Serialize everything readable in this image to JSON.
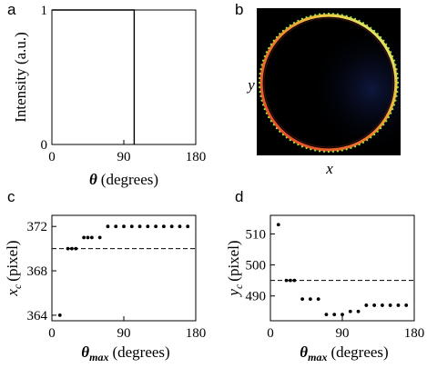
{
  "panel_labels": [
    "a",
    "b",
    "c",
    "d"
  ],
  "chart_data": [
    {
      "id": "a",
      "type": "line",
      "xlabel_symbol": "θ",
      "xlabel_units": "(degrees)",
      "ylabel": "Intensity (a.u.)",
      "x_ticks": [
        "0",
        "90",
        "180"
      ],
      "y_ticks": [
        "0",
        "1"
      ],
      "xlim": [
        0,
        180
      ],
      "ylim": [
        0,
        1
      ],
      "series": [
        {
          "x": [
            0,
            103,
            103
          ],
          "y": [
            1,
            1,
            0
          ]
        }
      ]
    },
    {
      "id": "b",
      "type": "image",
      "xlabel": "x",
      "ylabel": "y",
      "colors": {
        "background": "#000000",
        "ring_red": "#e23b2a",
        "ring_orange": "#f1a030",
        "ring_yellow": "#e8e060",
        "ring_cyan": "#7ad4e0",
        "ring_blue": "#2a3a8a",
        "fit_dots": "#9ce33a"
      }
    },
    {
      "id": "c",
      "type": "scatter",
      "ylabel_symbol": "x",
      "ylabel_sub": "c",
      "ylabel_units": "(pixel)",
      "xlabel_symbol": "θ",
      "xlabel_sub": "max",
      "xlabel_units": "(degrees)",
      "x_ticks": [
        "0",
        "90",
        "180"
      ],
      "y_ticks": [
        "364",
        "368",
        "372"
      ],
      "xlim": [
        0,
        180
      ],
      "ylim": [
        363.5,
        373
      ],
      "reference_line": 370,
      "points": [
        [
          10,
          364
        ],
        [
          20,
          370
        ],
        [
          25,
          370
        ],
        [
          30,
          370
        ],
        [
          40,
          371
        ],
        [
          45,
          371
        ],
        [
          50,
          371
        ],
        [
          60,
          371
        ],
        [
          70,
          372
        ],
        [
          80,
          372
        ],
        [
          90,
          372
        ],
        [
          100,
          372
        ],
        [
          110,
          372
        ],
        [
          120,
          372
        ],
        [
          130,
          372
        ],
        [
          140,
          372
        ],
        [
          150,
          372
        ],
        [
          160,
          372
        ],
        [
          170,
          372
        ]
      ]
    },
    {
      "id": "d",
      "type": "scatter",
      "ylabel_symbol": "y",
      "ylabel_sub": "c",
      "ylabel_units": "(pixel)",
      "xlabel_symbol": "θ",
      "xlabel_sub": "max",
      "xlabel_units": "(degrees)",
      "x_ticks": [
        "0",
        "90",
        "180"
      ],
      "y_ticks": [
        "490",
        "500",
        "510"
      ],
      "xlim": [
        0,
        180
      ],
      "ylim": [
        482,
        516
      ],
      "reference_line": 495,
      "points": [
        [
          10,
          513
        ],
        [
          20,
          495
        ],
        [
          25,
          495
        ],
        [
          30,
          495
        ],
        [
          40,
          489
        ],
        [
          50,
          489
        ],
        [
          60,
          489
        ],
        [
          70,
          484
        ],
        [
          80,
          484
        ],
        [
          90,
          484
        ],
        [
          100,
          485
        ],
        [
          110,
          485
        ],
        [
          120,
          487
        ],
        [
          130,
          487
        ],
        [
          140,
          487
        ],
        [
          150,
          487
        ],
        [
          160,
          487
        ],
        [
          170,
          487
        ]
      ]
    }
  ]
}
